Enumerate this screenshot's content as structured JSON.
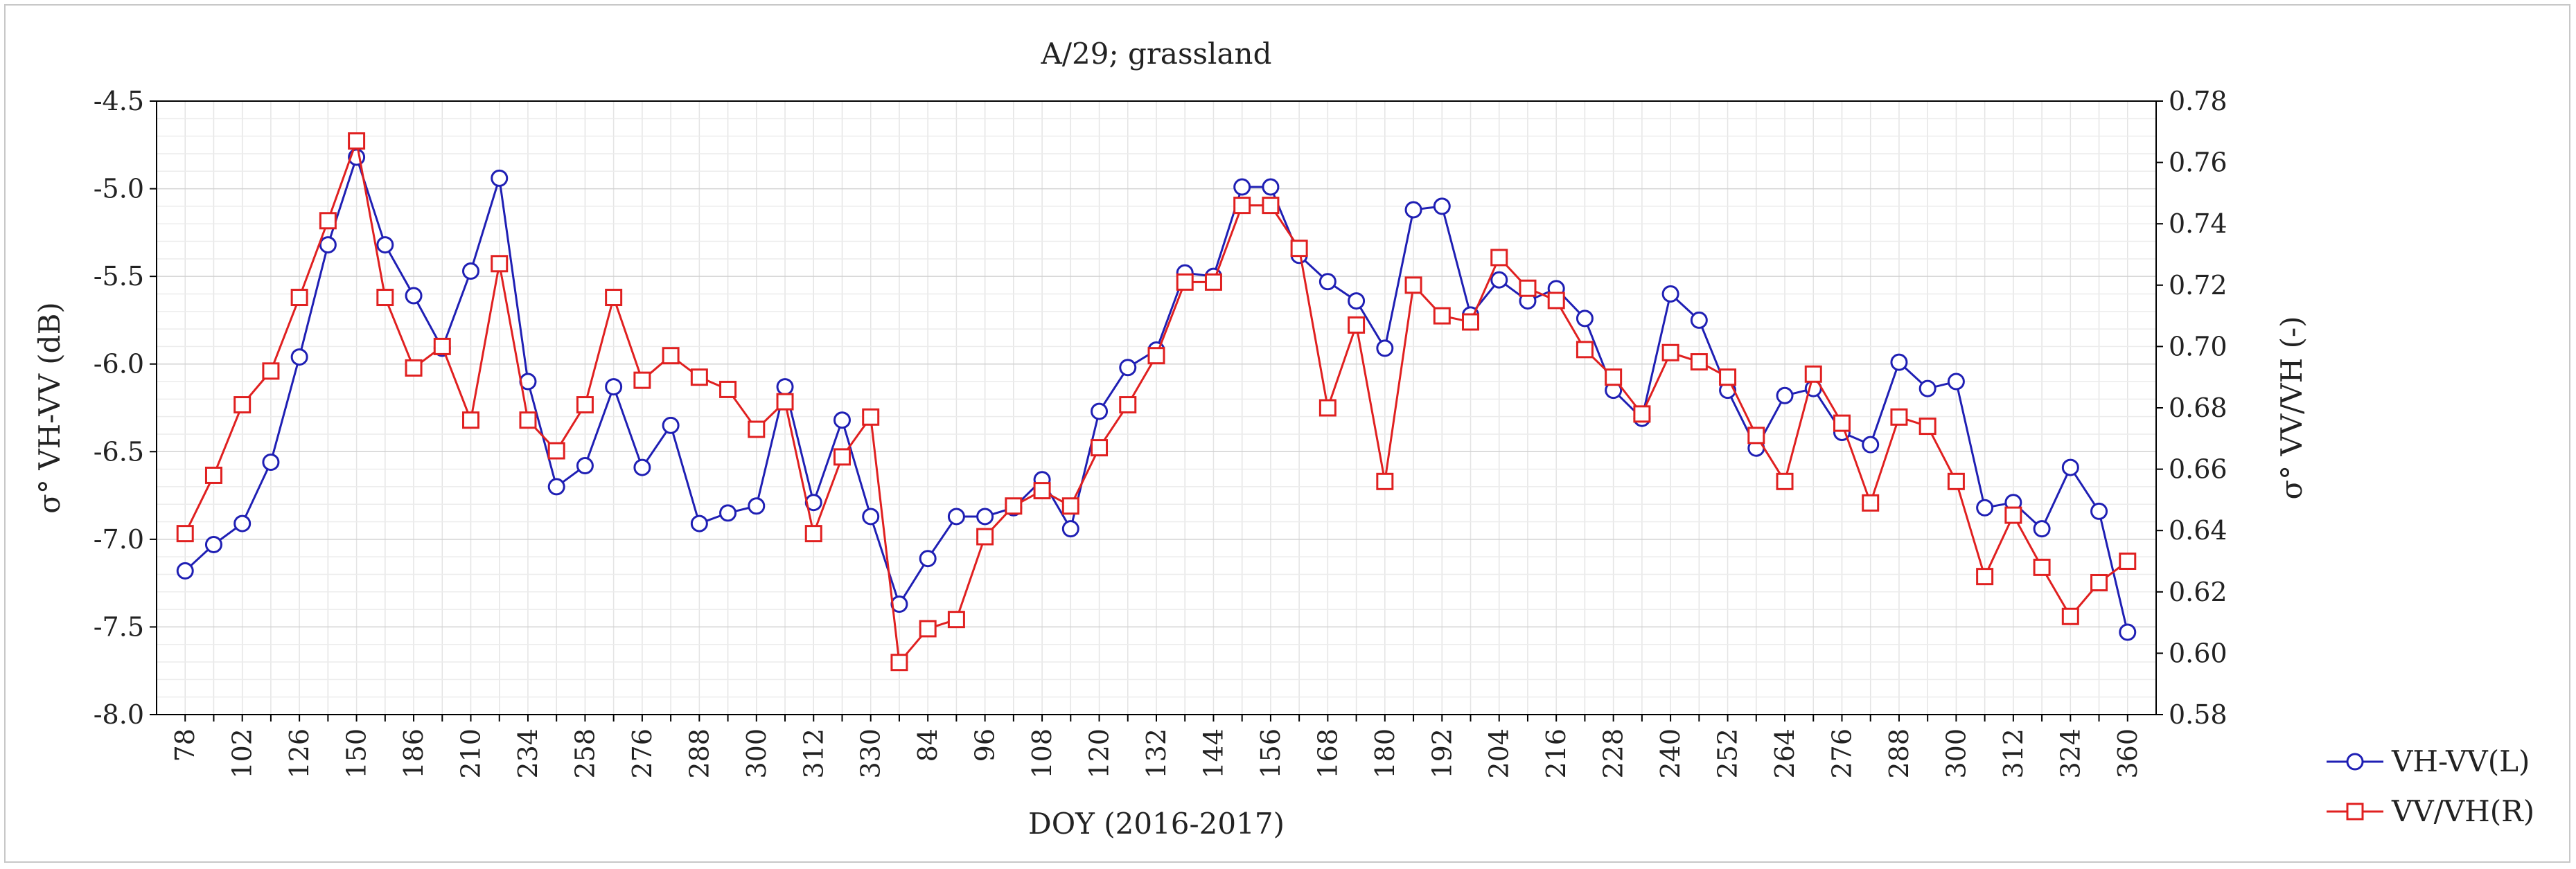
{
  "chart_data": {
    "type": "line",
    "title": "A/29; grassland",
    "xlabel": "DOY (2016-2017)",
    "ylabel_left": "σ°  VH-VV (dB)",
    "ylabel_right": "σ° VV/VH (-)",
    "ylim_left": [
      -8.0,
      -4.5
    ],
    "ylim_right": [
      0.58,
      0.78
    ],
    "yticks_left": [
      "-8.0",
      "-7.5",
      "-7.0",
      "-6.5",
      "-6.0",
      "-5.5",
      "-5.0",
      "-4.5"
    ],
    "yticks_right": [
      "0.58",
      "0.60",
      "0.62",
      "0.64",
      "0.66",
      "0.68",
      "0.70",
      "0.72",
      "0.74",
      "0.76",
      "0.78"
    ],
    "x_tick_labels": [
      "78",
      "102",
      "126",
      "150",
      "186",
      "210",
      "234",
      "258",
      "276",
      "288",
      "300",
      "312",
      "330",
      "84",
      "96",
      "108",
      "120",
      "132",
      "144",
      "156",
      "168",
      "180",
      "192",
      "204",
      "216",
      "228",
      "240",
      "252",
      "264",
      "276",
      "288",
      "300",
      "312",
      "324",
      "360"
    ],
    "grid": true,
    "legend_position": "bottom-right",
    "series": [
      {
        "name": "VH-VV(L)",
        "axis": "left",
        "color": "#1f1fb4",
        "marker": "circle",
        "values": [
          -7.18,
          -7.03,
          -6.91,
          -6.56,
          -5.96,
          -5.32,
          -4.82,
          -5.32,
          -5.61,
          -5.91,
          -5.47,
          -4.94,
          -6.1,
          -6.7,
          -6.58,
          -6.13,
          -6.59,
          -6.35,
          -6.91,
          -6.85,
          -6.81,
          -6.13,
          -6.79,
          -6.32,
          -6.87,
          -7.37,
          -7.11,
          -6.87,
          -6.87,
          -6.82,
          -6.66,
          -6.94,
          -6.27,
          -6.02,
          -5.92,
          -5.48,
          -5.5,
          -4.99,
          -4.99,
          -5.38,
          -5.53,
          -5.64,
          -5.91,
          -5.12,
          -5.1,
          -5.72,
          -5.52,
          -5.64,
          -5.57,
          -5.74,
          -6.15,
          -6.31,
          -5.6,
          -5.75,
          -6.15,
          -6.48,
          -6.18,
          -6.14,
          -6.39,
          -6.46,
          -5.99,
          -6.14,
          -6.1,
          -6.82,
          -6.79,
          -6.94,
          -6.59,
          -6.84,
          -7.53
        ]
      },
      {
        "name": "VV/VH(R)",
        "axis": "right",
        "color": "#e02020",
        "marker": "square",
        "values": [
          0.639,
          0.658,
          0.681,
          0.692,
          0.716,
          0.741,
          0.767,
          0.716,
          0.693,
          0.7,
          0.676,
          0.727,
          0.676,
          0.666,
          0.681,
          0.716,
          0.689,
          0.697,
          0.69,
          0.686,
          0.673,
          0.682,
          0.639,
          0.664,
          0.677,
          0.597,
          0.608,
          0.611,
          0.638,
          0.648,
          0.653,
          0.648,
          0.667,
          0.681,
          0.697,
          0.721,
          0.721,
          0.746,
          0.746,
          0.732,
          0.68,
          0.707,
          0.656,
          0.72,
          0.71,
          0.708,
          0.729,
          0.719,
          0.715,
          0.699,
          0.69,
          0.678,
          0.698,
          0.695,
          0.69,
          0.671,
          0.656,
          0.691,
          0.675,
          0.649,
          0.677,
          0.674,
          0.656,
          0.625,
          0.645,
          0.628,
          0.612,
          0.623,
          0.63
        ]
      }
    ]
  }
}
